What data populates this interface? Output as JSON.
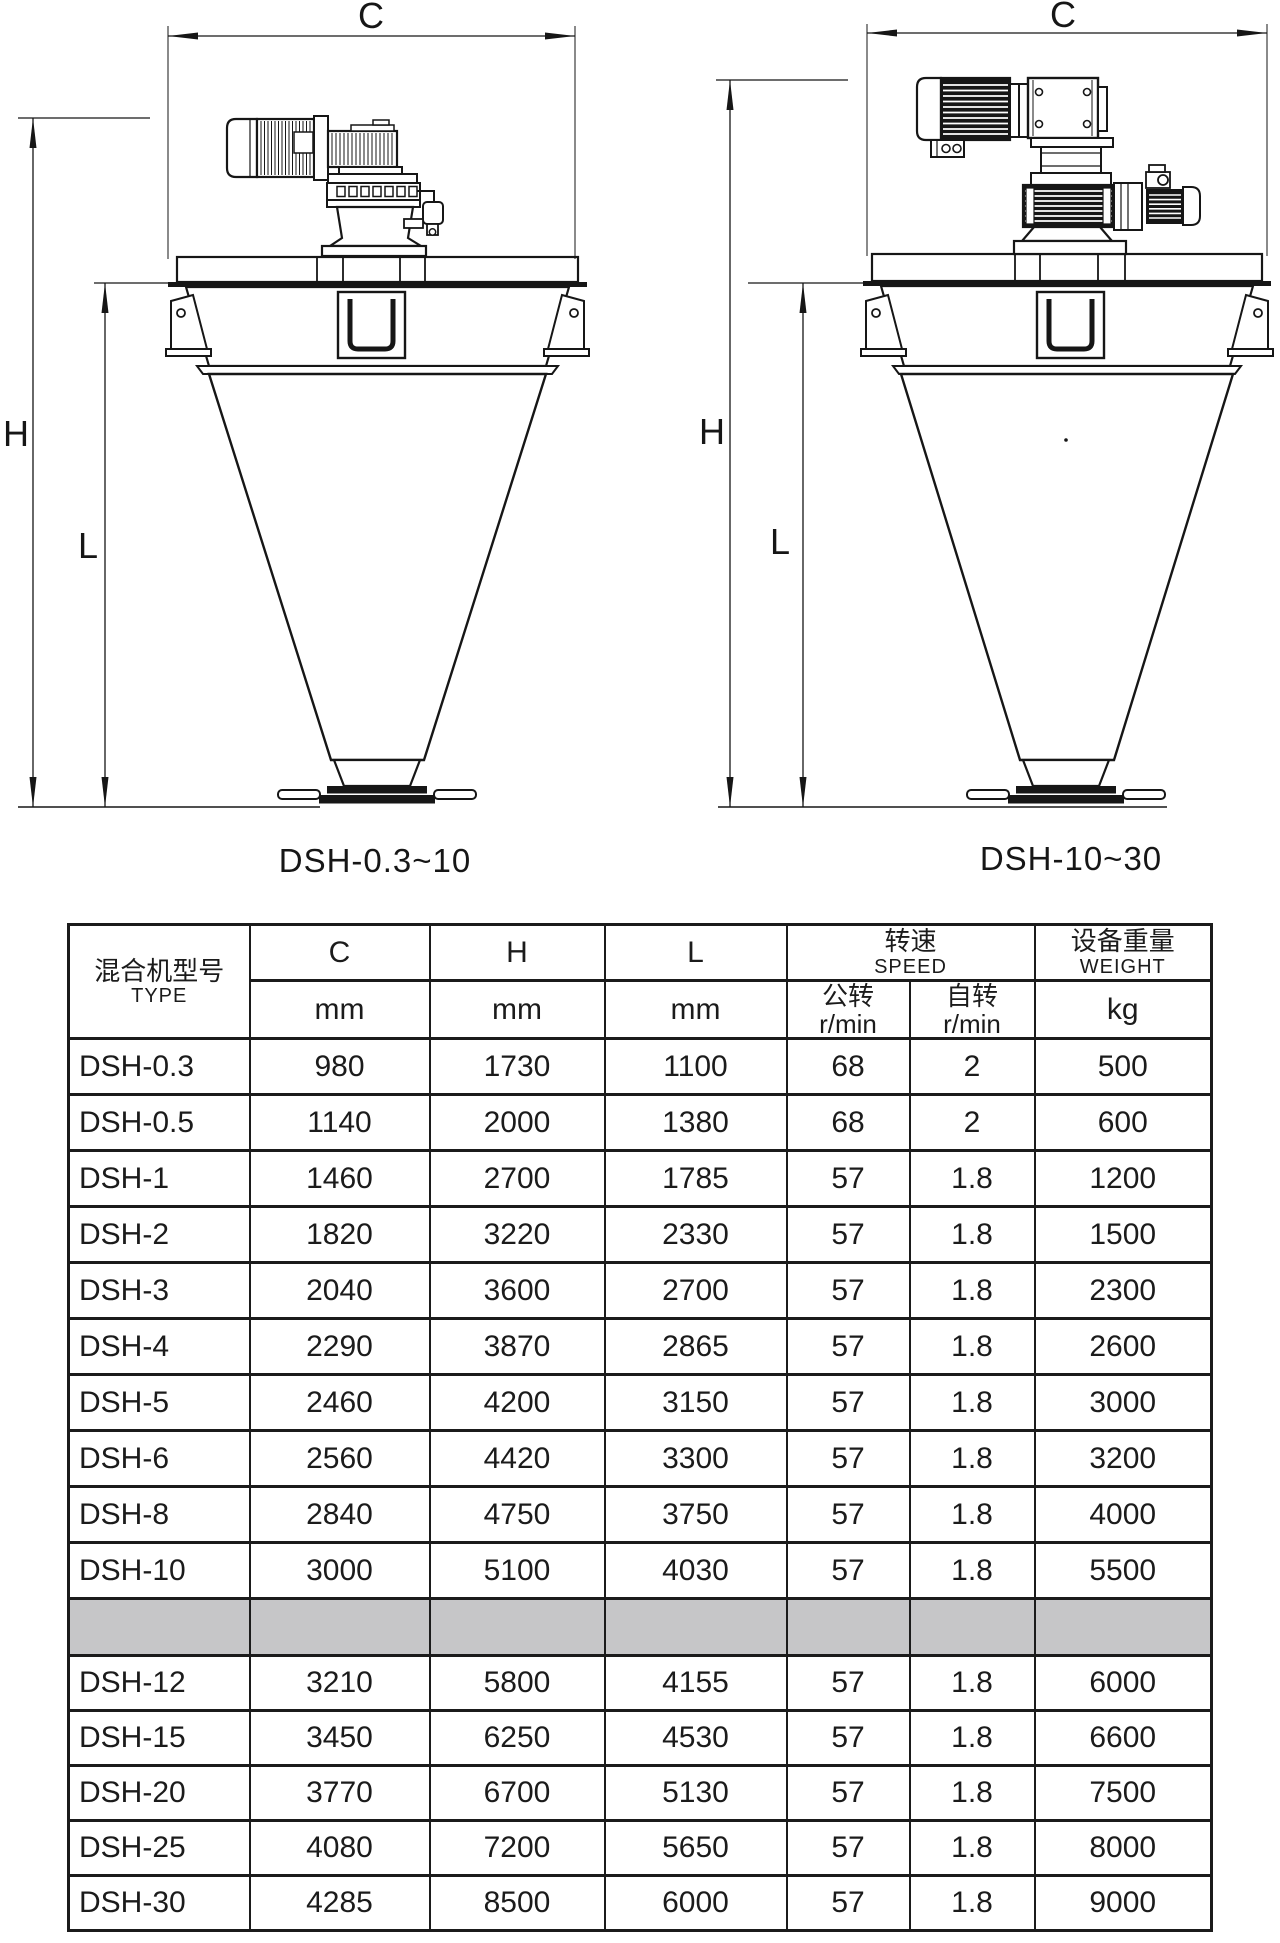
{
  "diagrams": {
    "left": {
      "label": "DSH-0.3~10",
      "dim_c": "C",
      "dim_h": "H",
      "dim_l": "L"
    },
    "right": {
      "label": "DSH-10~30",
      "dim_c": "C",
      "dim_h": "H",
      "dim_l": "L"
    }
  },
  "table": {
    "header": {
      "type_cn": "混合机型号",
      "type_en": "TYPE",
      "col_c": "C",
      "col_h": "H",
      "col_l": "L",
      "unit_mm": "mm",
      "unit_kg": "kg",
      "speed_cn": "转速",
      "speed_en": "SPEED",
      "orbit_cn": "公转",
      "rotation_cn": "自转",
      "rmin": "r/min",
      "weight_cn": "设备重量",
      "weight_en": "WEIGHT"
    },
    "rows_small": [
      {
        "model": "DSH-0.3",
        "c": "980",
        "h": "1730",
        "l": "1100",
        "orbit": "68",
        "rotation": "2",
        "weight": "500"
      },
      {
        "model": "DSH-0.5",
        "c": "1140",
        "h": "2000",
        "l": "1380",
        "orbit": "68",
        "rotation": "2",
        "weight": "600"
      },
      {
        "model": "DSH-1",
        "c": "1460",
        "h": "2700",
        "l": "1785",
        "orbit": "57",
        "rotation": "1.8",
        "weight": "1200"
      },
      {
        "model": "DSH-2",
        "c": "1820",
        "h": "3220",
        "l": "2330",
        "orbit": "57",
        "rotation": "1.8",
        "weight": "1500"
      },
      {
        "model": "DSH-3",
        "c": "2040",
        "h": "3600",
        "l": "2700",
        "orbit": "57",
        "rotation": "1.8",
        "weight": "2300"
      },
      {
        "model": "DSH-4",
        "c": "2290",
        "h": "3870",
        "l": "2865",
        "orbit": "57",
        "rotation": "1.8",
        "weight": "2600"
      },
      {
        "model": "DSH-5",
        "c": "2460",
        "h": "4200",
        "l": "3150",
        "orbit": "57",
        "rotation": "1.8",
        "weight": "3000"
      },
      {
        "model": "DSH-6",
        "c": "2560",
        "h": "4420",
        "l": "3300",
        "orbit": "57",
        "rotation": "1.8",
        "weight": "3200"
      },
      {
        "model": "DSH-8",
        "c": "2840",
        "h": "4750",
        "l": "3750",
        "orbit": "57",
        "rotation": "1.8",
        "weight": "4000"
      },
      {
        "model": "DSH-10",
        "c": "3000",
        "h": "5100",
        "l": "4030",
        "orbit": "57",
        "rotation": "1.8",
        "weight": "5500"
      }
    ],
    "rows_large": [
      {
        "model": "DSH-12",
        "c": "3210",
        "h": "5800",
        "l": "4155",
        "orbit": "57",
        "rotation": "1.8",
        "weight": "6000"
      },
      {
        "model": "DSH-15",
        "c": "3450",
        "h": "6250",
        "l": "4530",
        "orbit": "57",
        "rotation": "1.8",
        "weight": "6600"
      },
      {
        "model": "DSH-20",
        "c": "3770",
        "h": "6700",
        "l": "5130",
        "orbit": "57",
        "rotation": "1.8",
        "weight": "7500"
      },
      {
        "model": "DSH-25",
        "c": "4080",
        "h": "7200",
        "l": "5650",
        "orbit": "57",
        "rotation": "1.8",
        "weight": "8000"
      },
      {
        "model": "DSH-30",
        "c": "4285",
        "h": "8500",
        "l": "6000",
        "orbit": "57",
        "rotation": "1.8",
        "weight": "9000"
      }
    ]
  }
}
